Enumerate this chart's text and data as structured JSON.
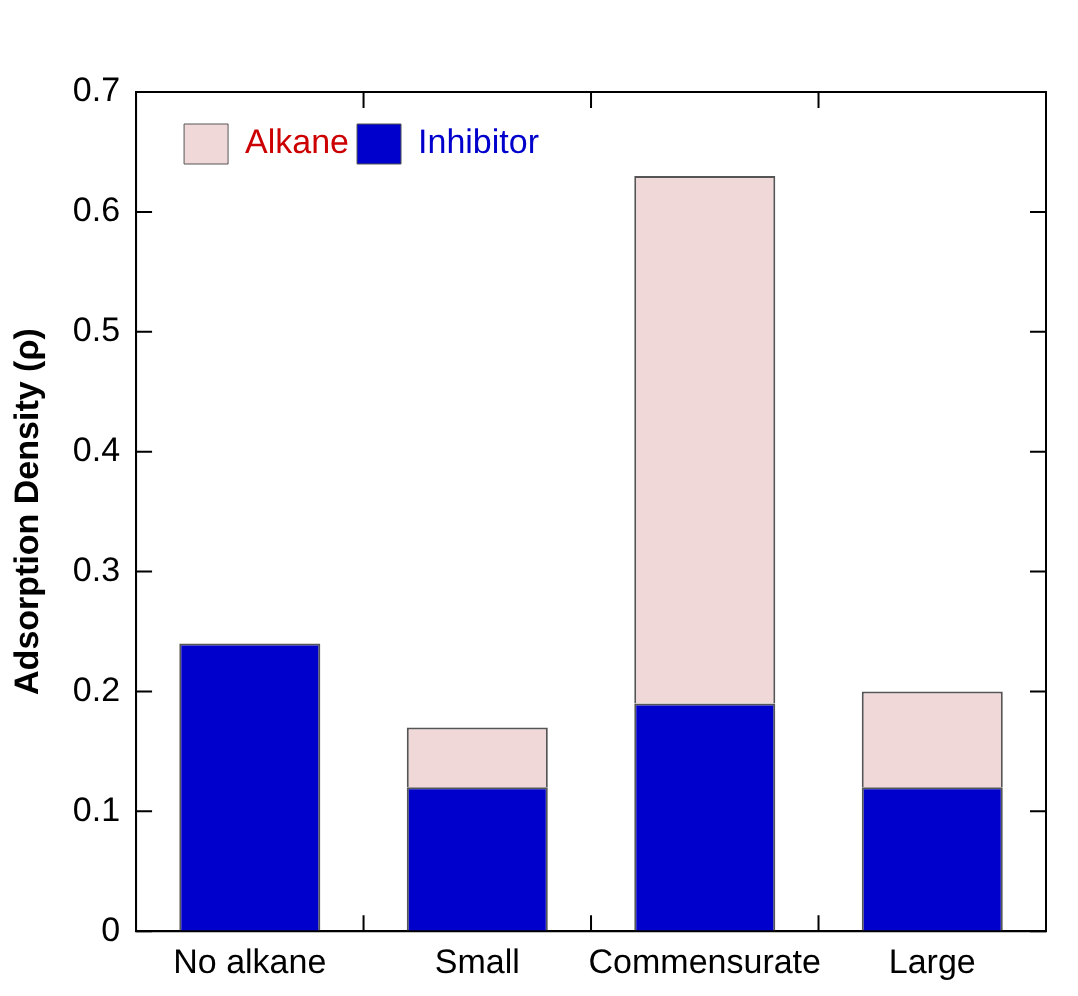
{
  "chart_data": {
    "type": "bar",
    "ylabel": "Adsorption Density (ρ)",
    "categories": [
      "No alkane",
      "Small",
      "Commensurate",
      "Large"
    ],
    "stacked": true,
    "series": [
      {
        "name": "Inhibitor",
        "color": "#0000cc",
        "values": [
          0.24,
          0.12,
          0.19,
          0.12
        ]
      },
      {
        "name": "Alkane",
        "color": "#f0d8d8",
        "values": [
          null,
          0.05,
          0.44,
          0.08
        ]
      }
    ],
    "ylim": [
      0,
      0.7
    ],
    "yticks": [
      0,
      0.1,
      0.2,
      0.3,
      0.4,
      0.5,
      0.6,
      0.7
    ],
    "legend": "top left",
    "grid": false
  }
}
